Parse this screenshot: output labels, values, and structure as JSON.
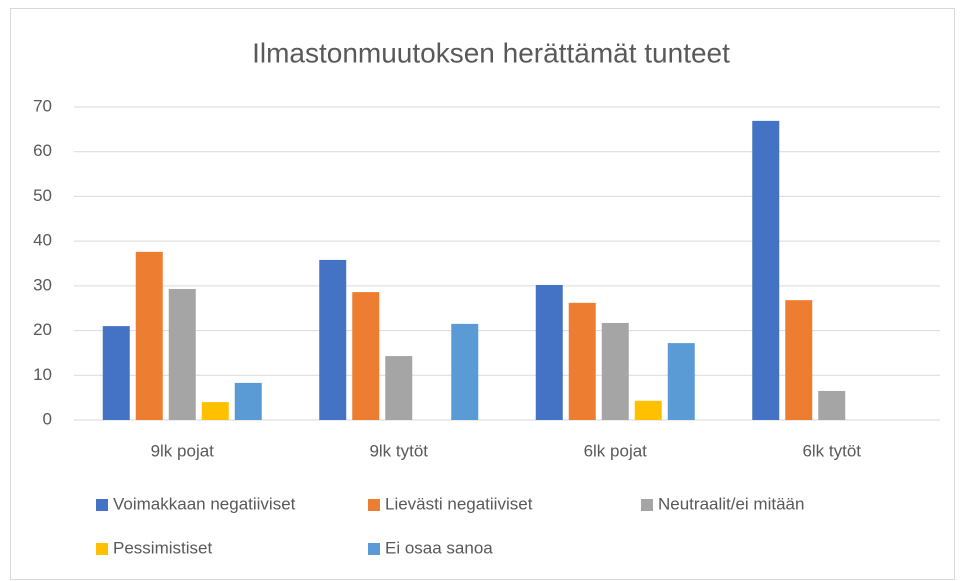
{
  "chart_data": {
    "type": "bar",
    "title": "Ilmastonmuutoksen herättämät tunteet",
    "categories": [
      "9lk pojat",
      "9lk tytöt",
      "6lk pojat",
      "6lk tytöt"
    ],
    "series": [
      {
        "name": "Voimakkaan negatiiviset",
        "color": "#4472c4",
        "values": [
          21.0,
          35.8,
          30.2,
          66.9
        ]
      },
      {
        "name": "Lievästi negatiiviset",
        "color": "#ed7d31",
        "values": [
          37.6,
          28.6,
          26.2,
          26.8
        ]
      },
      {
        "name": "Neutraalit/ei mitään",
        "color": "#a5a5a5",
        "values": [
          29.3,
          14.3,
          21.7,
          6.5
        ]
      },
      {
        "name": "Pessimistiset",
        "color": "#ffc000",
        "values": [
          4.0,
          0,
          4.3,
          0
        ]
      },
      {
        "name": "Ei osaa sanoa",
        "color": "#5b9bd5",
        "values": [
          8.3,
          21.5,
          17.2,
          0
        ]
      }
    ],
    "ylim": [
      0,
      70
    ],
    "yticks": [
      0,
      10,
      20,
      30,
      40,
      50,
      60,
      70
    ],
    "grid": true,
    "legend": "bottom"
  }
}
